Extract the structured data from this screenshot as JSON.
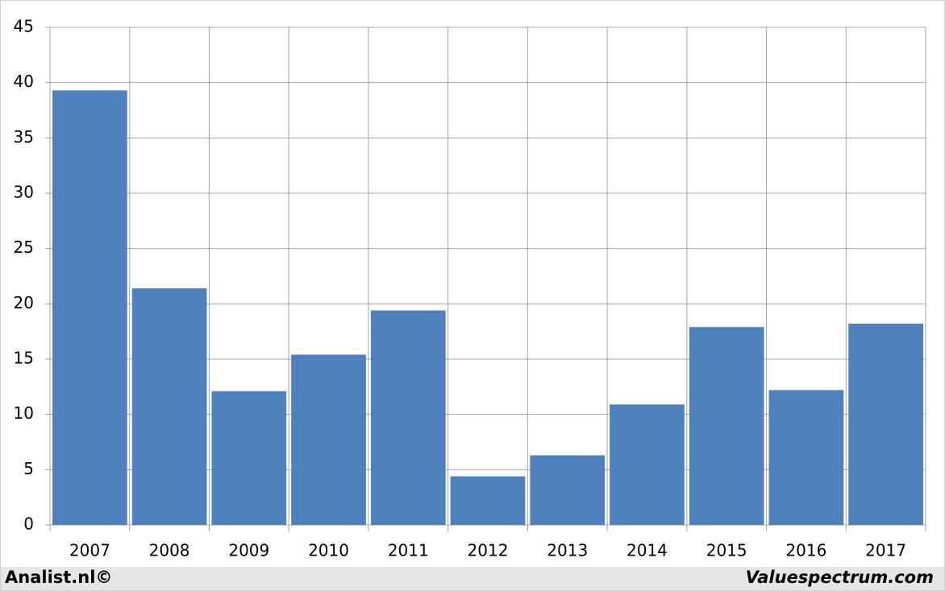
{
  "chart_data": {
    "type": "bar",
    "categories": [
      "2007",
      "2008",
      "2009",
      "2010",
      "2011",
      "2012",
      "2013",
      "2014",
      "2015",
      "2016",
      "2017"
    ],
    "values": [
      39.3,
      21.4,
      12.1,
      15.4,
      19.4,
      4.4,
      6.3,
      10.9,
      17.9,
      12.2,
      18.2
    ],
    "color": "#4f81bd",
    "ylim": [
      0,
      45
    ],
    "yticks": [
      0,
      5,
      10,
      15,
      20,
      25,
      30,
      35,
      40,
      45
    ],
    "grid": true
  },
  "footer": {
    "left": "Analist.nl©",
    "right": "Valuespectrum.com"
  }
}
